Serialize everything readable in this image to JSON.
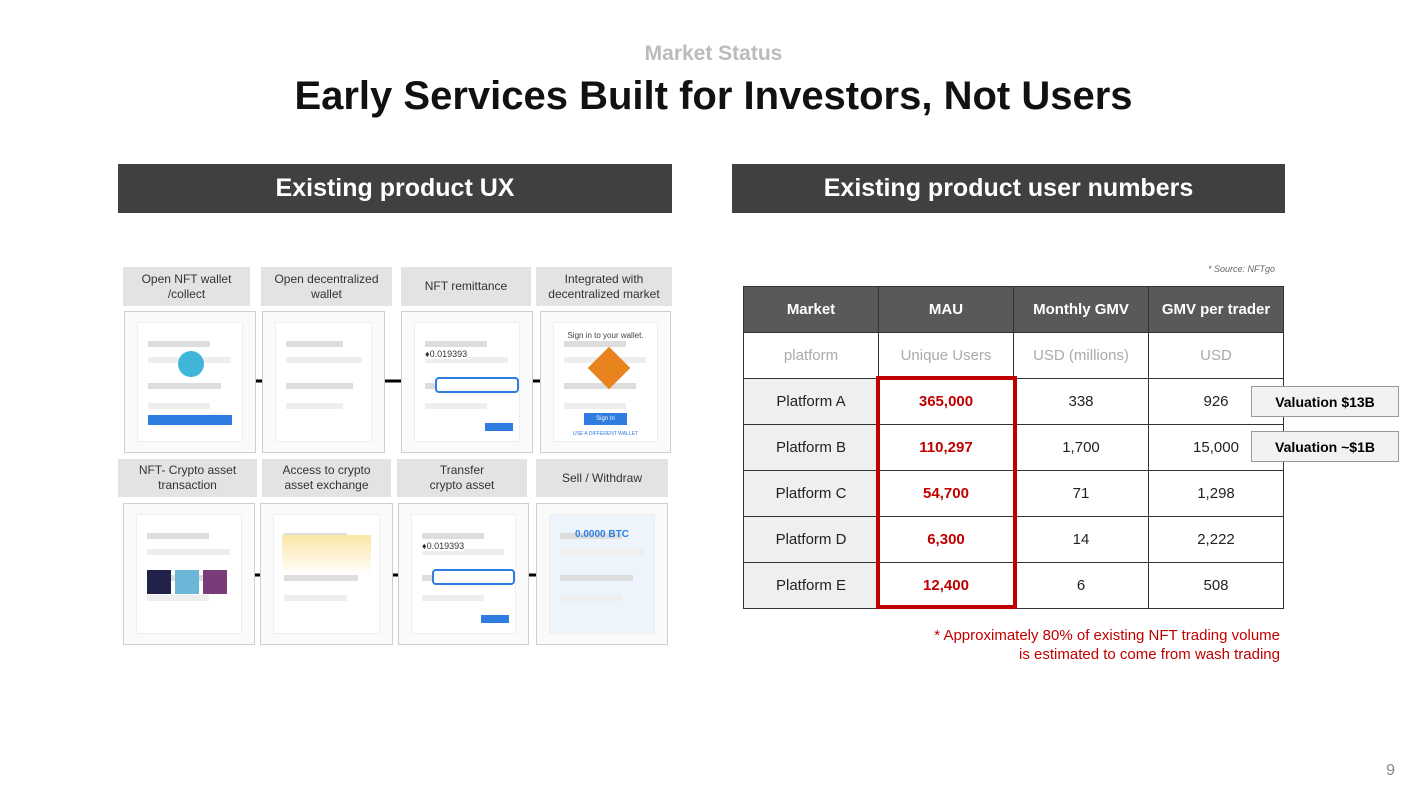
{
  "header": {
    "section": "Market Status",
    "title": "Early Services Built for Investors, Not Users"
  },
  "left": {
    "heading": "Existing product UX",
    "steps": [
      [
        "Open NFT wallet",
        "/collect"
      ],
      [
        "Open decentralized",
        "wallet"
      ],
      [
        "NFT remittance"
      ],
      [
        "Integrated with",
        "decentralized market"
      ],
      [
        "NFT- Crypto asset",
        "transaction"
      ],
      [
        "Access to crypto",
        "asset exchange"
      ],
      [
        "Transfer",
        "crypto asset"
      ],
      [
        "Sell / Withdraw"
      ]
    ],
    "mockups": {
      "wallet_signin": "Sign in to your wallet.",
      "sign_in_button": "Sign In",
      "different_wallet": "USE A DIFFERENT WALLET",
      "remittance_amount": "♦0.019393",
      "btc_balance": "0.0000 BTC"
    }
  },
  "right": {
    "heading": "Existing product user numbers",
    "source": "* Source: NFTgo",
    "table": {
      "columns": [
        "Market",
        "MAU",
        "Monthly GMV",
        "GMV per trader"
      ],
      "units": [
        "platform",
        "Unique Users",
        "USD (millions)",
        "USD"
      ],
      "rows": [
        [
          "Platform A",
          "365,000",
          "338",
          "926"
        ],
        [
          "Platform B",
          "110,297",
          "1,700",
          "15,000"
        ],
        [
          "Platform C",
          "54,700",
          "71",
          "1,298"
        ],
        [
          "Platform D",
          "6,300",
          "14",
          "2,222"
        ],
        [
          "Platform E",
          "12,400",
          "6",
          "508"
        ]
      ]
    },
    "valuations": [
      "Valuation $13B",
      "Valuation ~$1B"
    ],
    "footnote": [
      "* Approximately 80% of existing NFT trading volume",
      "is estimated to come from wash trading"
    ]
  },
  "page_number": "9"
}
